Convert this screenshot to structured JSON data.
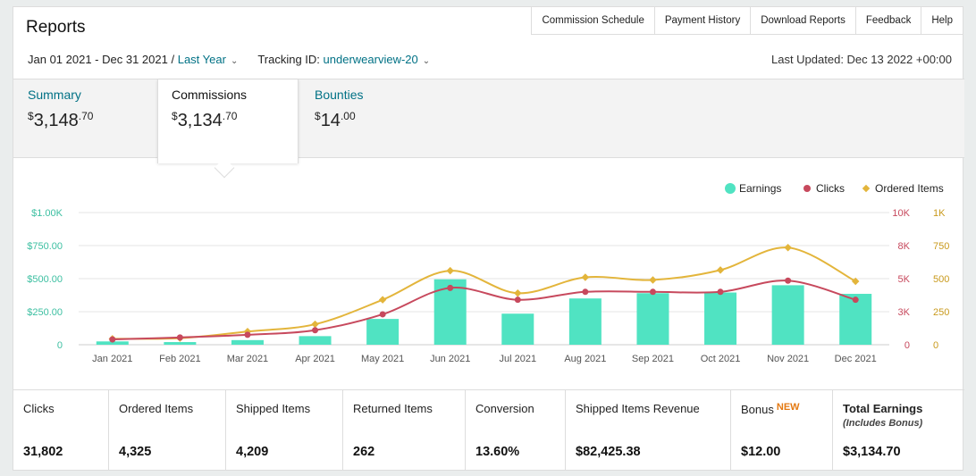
{
  "header": {
    "title": "Reports",
    "nav": [
      "Commission Schedule",
      "Payment History",
      "Download Reports",
      "Feedback",
      "Help"
    ],
    "date_range": "Jan 01 2021 - Dec 31 2021",
    "separator": "/",
    "period": "Last Year",
    "tracking_label": "Tracking ID:",
    "tracking_id": "underwearview-20",
    "last_updated": "Last Updated: Dec 13 2022 +00:00"
  },
  "tabs": [
    {
      "label": "Summary",
      "currency": "$",
      "whole": "3,148",
      "cents": ".70",
      "active": false
    },
    {
      "label": "Commissions",
      "currency": "$",
      "whole": "3,134",
      "cents": ".70",
      "active": true
    },
    {
      "label": "Bounties",
      "currency": "$",
      "whole": "14",
      "cents": ".00",
      "active": false
    }
  ],
  "colors": {
    "earnings": "#50e3c2",
    "clicks": "#c7495d",
    "ordered": "#e3b53b",
    "link": "#007185",
    "new_badge": "#e47911"
  },
  "chart_data": {
    "type": "bar",
    "categories": [
      "Jan 2021",
      "Feb 2021",
      "Mar 2021",
      "Apr 2021",
      "May 2021",
      "Jun 2021",
      "Jul 2021",
      "Aug 2021",
      "Sep 2021",
      "Oct 2021",
      "Nov 2021",
      "Dec 2021"
    ],
    "legend": [
      "Earnings",
      "Clicks",
      "Ordered Items"
    ],
    "legend_placement": "top-right",
    "series": [
      {
        "name": "Earnings",
        "type": "bar",
        "axis": "left",
        "values": [
          25,
          20,
          35,
          65,
          195,
          495,
          235,
          350,
          390,
          395,
          450,
          385
        ]
      },
      {
        "name": "Clicks",
        "type": "line",
        "axis": "right1",
        "values": [
          400,
          550,
          750,
          1100,
          2300,
          4300,
          3400,
          4000,
          4000,
          4000,
          4850,
          3400
        ]
      },
      {
        "name": "Ordered Items",
        "type": "line",
        "axis": "right2",
        "values": [
          45,
          50,
          100,
          155,
          340,
          560,
          390,
          510,
          490,
          565,
          735,
          480
        ]
      }
    ],
    "left_axis": {
      "ticks": [
        "$1.00K",
        "$750.00",
        "$500.00",
        "$250.00",
        "0"
      ],
      "range": [
        0,
        1000
      ]
    },
    "right1_axis": {
      "ticks": [
        "10K",
        "8K",
        "5K",
        "3K",
        "0"
      ],
      "range": [
        0,
        10000
      ]
    },
    "right2_axis": {
      "ticks": [
        "1K",
        "750",
        "500",
        "250",
        "0"
      ],
      "range": [
        0,
        1000
      ]
    },
    "grid": true
  },
  "metrics": [
    {
      "label": "Clicks",
      "value": "31,802"
    },
    {
      "label": "Ordered Items",
      "value": "4,325"
    },
    {
      "label": "Shipped Items",
      "value": "4,209"
    },
    {
      "label": "Returned Items",
      "value": "262"
    },
    {
      "label": "Conversion",
      "value": "13.60%"
    },
    {
      "label": "Shipped Items Revenue",
      "value": "$82,425.38"
    },
    {
      "label": "Bonus",
      "badge": "NEW",
      "value": "$12.00"
    },
    {
      "label": "Total Earnings",
      "sublabel": "(Includes Bonus)",
      "value": "$3,134.70"
    }
  ]
}
